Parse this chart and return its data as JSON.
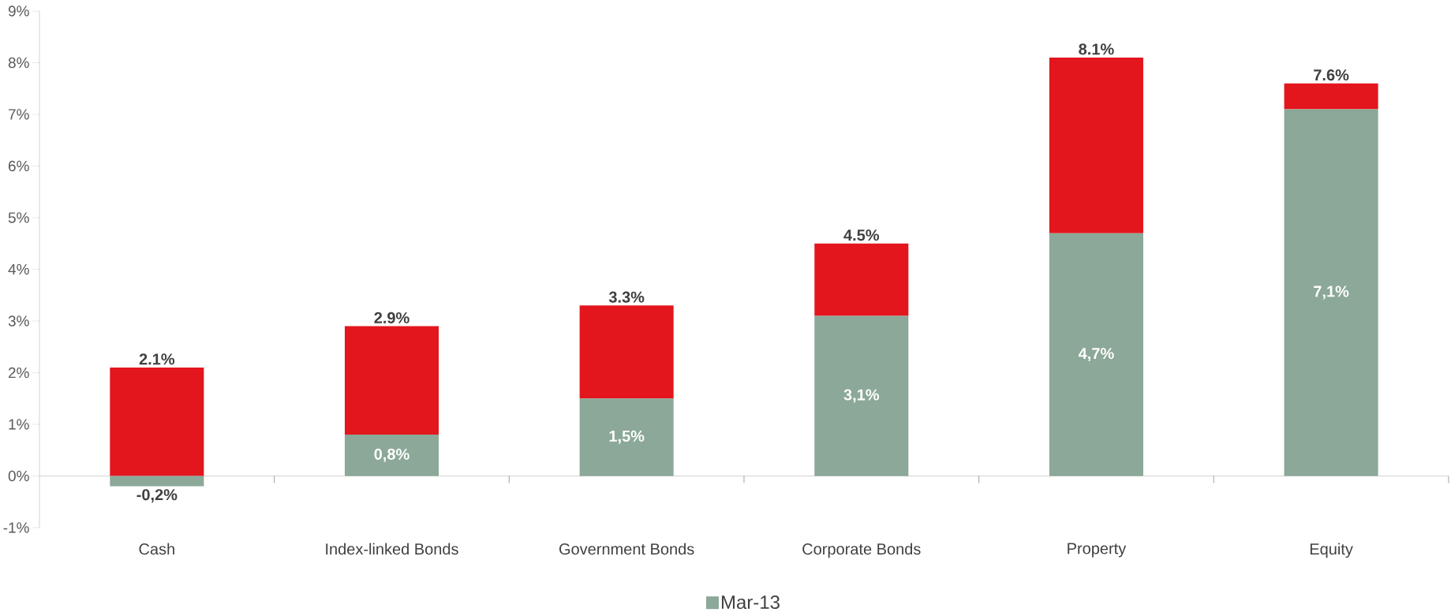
{
  "chart_data": {
    "type": "bar",
    "stacked": true,
    "categories": [
      "Cash",
      "Index-linked Bonds",
      "Government Bonds",
      "Corporate Bonds",
      "Property",
      "Equity"
    ],
    "series": [
      {
        "name": "Mar-13",
        "color": "#8ba898",
        "values": [
          -0.2,
          0.8,
          1.5,
          3.1,
          4.7,
          7.1
        ],
        "value_labels": [
          "-0,2%",
          "0,8%",
          "1,5%",
          "3,1%",
          "4,7%",
          "7,1%"
        ]
      },
      {
        "color": "#e3161d",
        "values": [
          2.1,
          2.1,
          1.8,
          1.4,
          3.4,
          0.5
        ]
      }
    ],
    "annotations": [
      {
        "text": "2.1%",
        "x": "Cash",
        "y": 2.1
      },
      {
        "text": "2.9%",
        "x": "Index-linked Bonds",
        "y": 2.9
      },
      {
        "text": "3.3%",
        "x": "Government Bonds",
        "y": 3.3
      },
      {
        "text": "4.5%",
        "x": "Corporate Bonds",
        "y": 4.5
      },
      {
        "text": "8.1%",
        "x": "Property",
        "y": 8.1
      },
      {
        "text": "7.6%",
        "x": "Equity",
        "y": 7.6
      }
    ],
    "ylim": [
      -1,
      9
    ],
    "yticks": [
      {
        "value": -1,
        "label": "-1%"
      },
      {
        "value": 0,
        "label": "0%"
      },
      {
        "value": 1,
        "label": "1%"
      },
      {
        "value": 2,
        "label": "2%"
      },
      {
        "value": 3,
        "label": "3%"
      },
      {
        "value": 4,
        "label": "4%"
      },
      {
        "value": 5,
        "label": "5%"
      },
      {
        "value": 6,
        "label": "6%"
      },
      {
        "value": 7,
        "label": "7%"
      },
      {
        "value": 8,
        "label": "8%"
      },
      {
        "value": 9,
        "label": "9%"
      }
    ],
    "legend": "bottom"
  }
}
